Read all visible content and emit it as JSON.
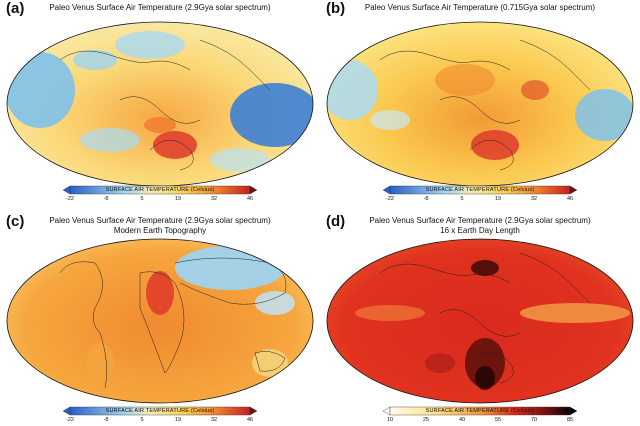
{
  "panels": [
    {
      "label": "(a)",
      "title": "Paleo Venus Surface Air Temperature (2.9Gya solar spectrum)",
      "subtitle": "",
      "colorbar": {
        "title": "SURFACE AIR TEMPERATURE (Celsius)",
        "ticks": [
          "-22",
          "-8",
          "5",
          "19",
          "32",
          "46"
        ],
        "scale": "blue-yellow-red"
      }
    },
    {
      "label": "(b)",
      "title": "Paleo Venus Surface Air Temperature (0.715Gya solar spectrum)",
      "subtitle": "",
      "colorbar": {
        "title": "SURFACE AIR TEMPERATURE (Celsius)",
        "ticks": [
          "-22",
          "-8",
          "5",
          "19",
          "32",
          "46"
        ],
        "scale": "blue-yellow-red"
      }
    },
    {
      "label": "(c)",
      "title": "Paleo Venus Surface Air Temperature (2.9Gya solar spectrum)",
      "subtitle": "Modern Earth Topography",
      "colorbar": {
        "title": "SURFACE AIR TEMPERATURE (Celsius)",
        "ticks": [
          "-22",
          "-8",
          "5",
          "19",
          "32",
          "46"
        ],
        "scale": "blue-yellow-red"
      }
    },
    {
      "label": "(d)",
      "title": "Paleo Venus Surface Air Temperature (2.9Gya solar spectrum)",
      "subtitle": "16 x Earth Day Length",
      "colorbar": {
        "title": "SURFACE AIR TEMPERATURE (Celsius)",
        "ticks": [
          "10",
          "25",
          "40",
          "55",
          "70",
          "85"
        ],
        "scale": "white-yellow-red-black"
      }
    }
  ],
  "colors": {
    "cold": "#2f6fd6",
    "cool": "#9fd3ef",
    "mild": "#fbe07a",
    "warm": "#f4b13a",
    "hot": "#e0392a",
    "veryhot": "#5a0f0a"
  }
}
